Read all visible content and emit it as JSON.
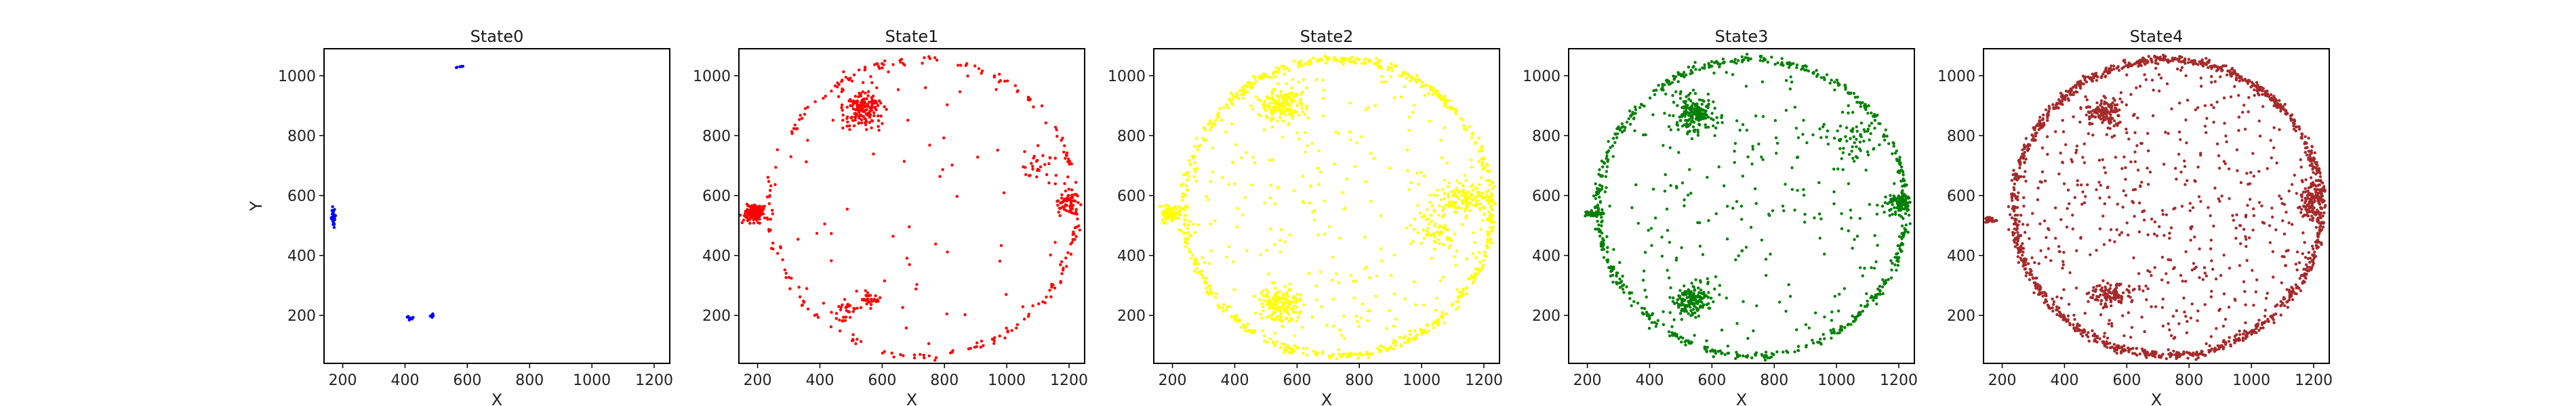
{
  "chart_data": [
    {
      "type": "scatter",
      "title": "State0",
      "xlabel": "X",
      "ylabel": "Y",
      "color": "#0000ff",
      "xlim": [
        140,
        1250
      ],
      "ylim": [
        40,
        1090
      ],
      "xticks": [
        200,
        400,
        600,
        800,
        1000,
        1200
      ],
      "yticks": [
        200,
        400,
        600,
        800,
        1000
      ],
      "clusters": [
        {
          "cx": 580,
          "cy": 1030,
          "rx": 25,
          "ry": 8,
          "n": 6
        },
        {
          "cx": 170,
          "cy": 530,
          "rx": 6,
          "ry": 35,
          "n": 30
        },
        {
          "cx": 415,
          "cy": 190,
          "rx": 12,
          "ry": 8,
          "n": 8
        },
        {
          "cx": 490,
          "cy": 200,
          "rx": 8,
          "ry": 8,
          "n": 10
        }
      ]
    },
    {
      "type": "scatter",
      "title": "State1",
      "xlabel": "X",
      "ylabel": "",
      "color": "#ff0000",
      "xlim": [
        140,
        1250
      ],
      "ylim": [
        40,
        1090
      ],
      "xticks": [
        200,
        400,
        600,
        800,
        1000,
        1200
      ],
      "yticks": [
        200,
        400,
        600,
        800,
        1000
      ],
      "circle": {
        "cx": 730,
        "cy": 560,
        "r": 495,
        "n": 220
      },
      "interior_n": 70,
      "clusters": [
        {
          "cx": 530,
          "cy": 890,
          "rx": 70,
          "ry": 70,
          "n": 160
        },
        {
          "cx": 190,
          "cy": 540,
          "rx": 35,
          "ry": 30,
          "n": 140
        },
        {
          "cx": 1200,
          "cy": 580,
          "rx": 30,
          "ry": 40,
          "n": 60
        },
        {
          "cx": 560,
          "cy": 250,
          "rx": 30,
          "ry": 20,
          "n": 30
        },
        {
          "cx": 480,
          "cy": 220,
          "rx": 40,
          "ry": 35,
          "n": 30
        },
        {
          "cx": 1100,
          "cy": 700,
          "rx": 60,
          "ry": 50,
          "n": 25
        }
      ]
    },
    {
      "type": "scatter",
      "title": "State2",
      "xlabel": "X",
      "ylabel": "",
      "color": "#ffff00",
      "xlim": [
        140,
        1250
      ],
      "ylim": [
        40,
        1090
      ],
      "xticks": [
        200,
        400,
        600,
        800,
        1000,
        1200
      ],
      "yticks": [
        200,
        400,
        600,
        800,
        1000
      ],
      "circle": {
        "cx": 730,
        "cy": 560,
        "r": 495,
        "n": 650
      },
      "interior_n": 260,
      "clusters": [
        {
          "cx": 550,
          "cy": 900,
          "rx": 70,
          "ry": 60,
          "n": 160
        },
        {
          "cx": 550,
          "cy": 240,
          "rx": 70,
          "ry": 55,
          "n": 160
        },
        {
          "cx": 190,
          "cy": 540,
          "rx": 30,
          "ry": 25,
          "n": 90
        },
        {
          "cx": 1140,
          "cy": 580,
          "rx": 90,
          "ry": 60,
          "n": 130
        },
        {
          "cx": 1050,
          "cy": 480,
          "rx": 60,
          "ry": 80,
          "n": 60
        }
      ]
    },
    {
      "type": "scatter",
      "title": "State3",
      "xlabel": "X",
      "ylabel": "",
      "color": "#008000",
      "xlim": [
        140,
        1250
      ],
      "ylim": [
        40,
        1090
      ],
      "xticks": [
        200,
        400,
        600,
        800,
        1000,
        1200
      ],
      "yticks": [
        200,
        400,
        600,
        800,
        1000
      ],
      "circle": {
        "cx": 730,
        "cy": 560,
        "r": 495,
        "n": 600
      },
      "interior_n": 230,
      "clusters": [
        {
          "cx": 540,
          "cy": 870,
          "rx": 65,
          "ry": 55,
          "n": 170
        },
        {
          "cx": 530,
          "cy": 250,
          "rx": 60,
          "ry": 50,
          "n": 150
        },
        {
          "cx": 1200,
          "cy": 580,
          "rx": 35,
          "ry": 40,
          "n": 90
        },
        {
          "cx": 220,
          "cy": 540,
          "rx": 30,
          "ry": 10,
          "n": 40
        },
        {
          "cx": 1050,
          "cy": 800,
          "rx": 90,
          "ry": 90,
          "n": 60
        }
      ]
    },
    {
      "type": "scatter",
      "title": "State4",
      "xlabel": "X",
      "ylabel": "",
      "color": "#a52a2a",
      "xlim": [
        140,
        1250
      ],
      "ylim": [
        40,
        1090
      ],
      "xticks": [
        200,
        400,
        600,
        800,
        1000,
        1200
      ],
      "yticks": [
        200,
        400,
        600,
        800,
        1000
      ],
      "circle": {
        "cx": 730,
        "cy": 560,
        "r": 495,
        "n": 1100
      },
      "interior_n": 520,
      "clusters": [
        {
          "cx": 530,
          "cy": 880,
          "rx": 55,
          "ry": 45,
          "n": 120
        },
        {
          "cx": 550,
          "cy": 270,
          "rx": 60,
          "ry": 40,
          "n": 100
        },
        {
          "cx": 1190,
          "cy": 580,
          "rx": 40,
          "ry": 60,
          "n": 120
        },
        {
          "cx": 160,
          "cy": 520,
          "rx": 25,
          "ry": 10,
          "n": 25
        }
      ]
    }
  ]
}
